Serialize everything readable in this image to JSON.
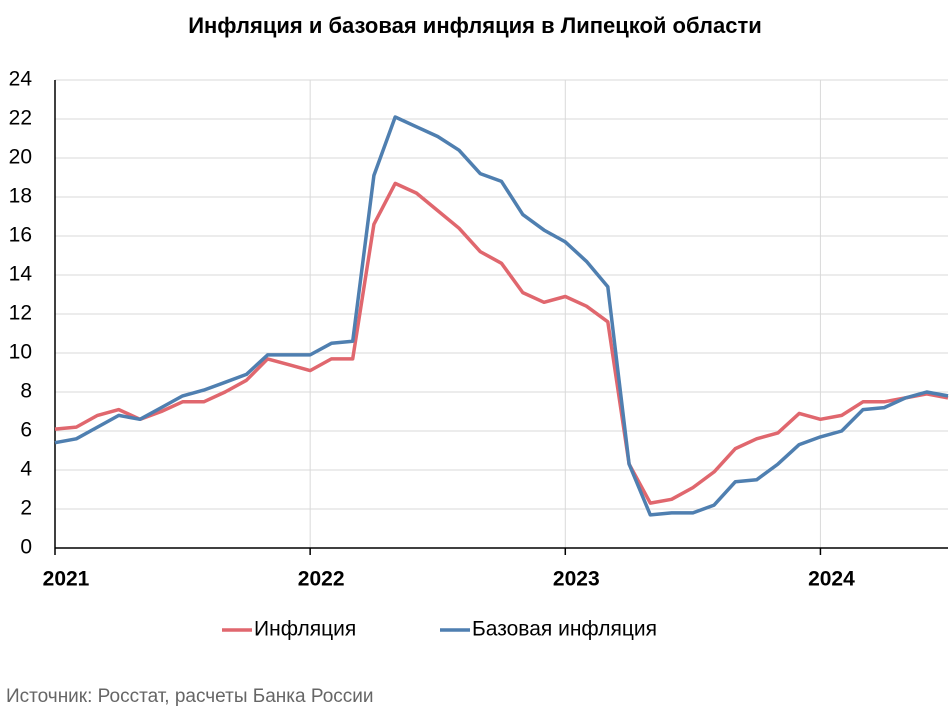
{
  "chart_data": {
    "type": "line",
    "title": "Инфляция и базовая инфляция в Липецкой области",
    "categories": [
      "2021",
      null,
      null,
      null,
      null,
      null,
      null,
      null,
      null,
      null,
      null,
      null,
      "2022",
      null,
      null,
      null,
      null,
      null,
      null,
      null,
      null,
      null,
      null,
      null,
      "2023",
      null,
      null,
      null,
      null,
      null,
      null,
      null,
      null,
      null,
      null,
      null,
      "2024",
      null,
      null,
      null,
      null,
      null,
      null
    ],
    "series": [
      {
        "name": "Инфляция",
        "color": "#e0676e",
        "values": [
          6.1,
          6.2,
          6.8,
          7.1,
          6.6,
          7.0,
          7.5,
          7.5,
          8.0,
          8.6,
          9.7,
          9.4,
          9.1,
          9.7,
          9.7,
          16.6,
          18.7,
          18.2,
          17.3,
          16.4,
          15.2,
          14.6,
          13.1,
          12.6,
          12.9,
          12.4,
          11.6,
          4.3,
          2.3,
          2.5,
          3.1,
          3.9,
          5.1,
          5.6,
          5.9,
          6.9,
          6.6,
          6.8,
          7.5,
          7.5,
          7.7,
          7.9,
          7.7
        ]
      },
      {
        "name": "Базовая инфляция",
        "color": "#4f7fb0",
        "values": [
          5.4,
          5.6,
          6.2,
          6.8,
          6.6,
          7.2,
          7.8,
          8.1,
          8.5,
          8.9,
          9.9,
          9.9,
          9.9,
          10.5,
          10.6,
          19.1,
          22.1,
          21.6,
          21.1,
          20.4,
          19.2,
          18.8,
          17.1,
          16.3,
          15.7,
          14.7,
          13.4,
          4.3,
          1.7,
          1.8,
          1.8,
          2.2,
          3.4,
          3.5,
          4.3,
          5.3,
          5.7,
          6.0,
          7.1,
          7.2,
          7.7,
          8.0,
          7.8
        ]
      }
    ],
    "ylim": [
      0,
      24
    ],
    "yticks": [
      0,
      2,
      4,
      6,
      8,
      10,
      12,
      14,
      16,
      18,
      20,
      22,
      24
    ],
    "grid": true,
    "legend": "bottom",
    "source": "Источник: Росстат, расчеты Банка России"
  }
}
